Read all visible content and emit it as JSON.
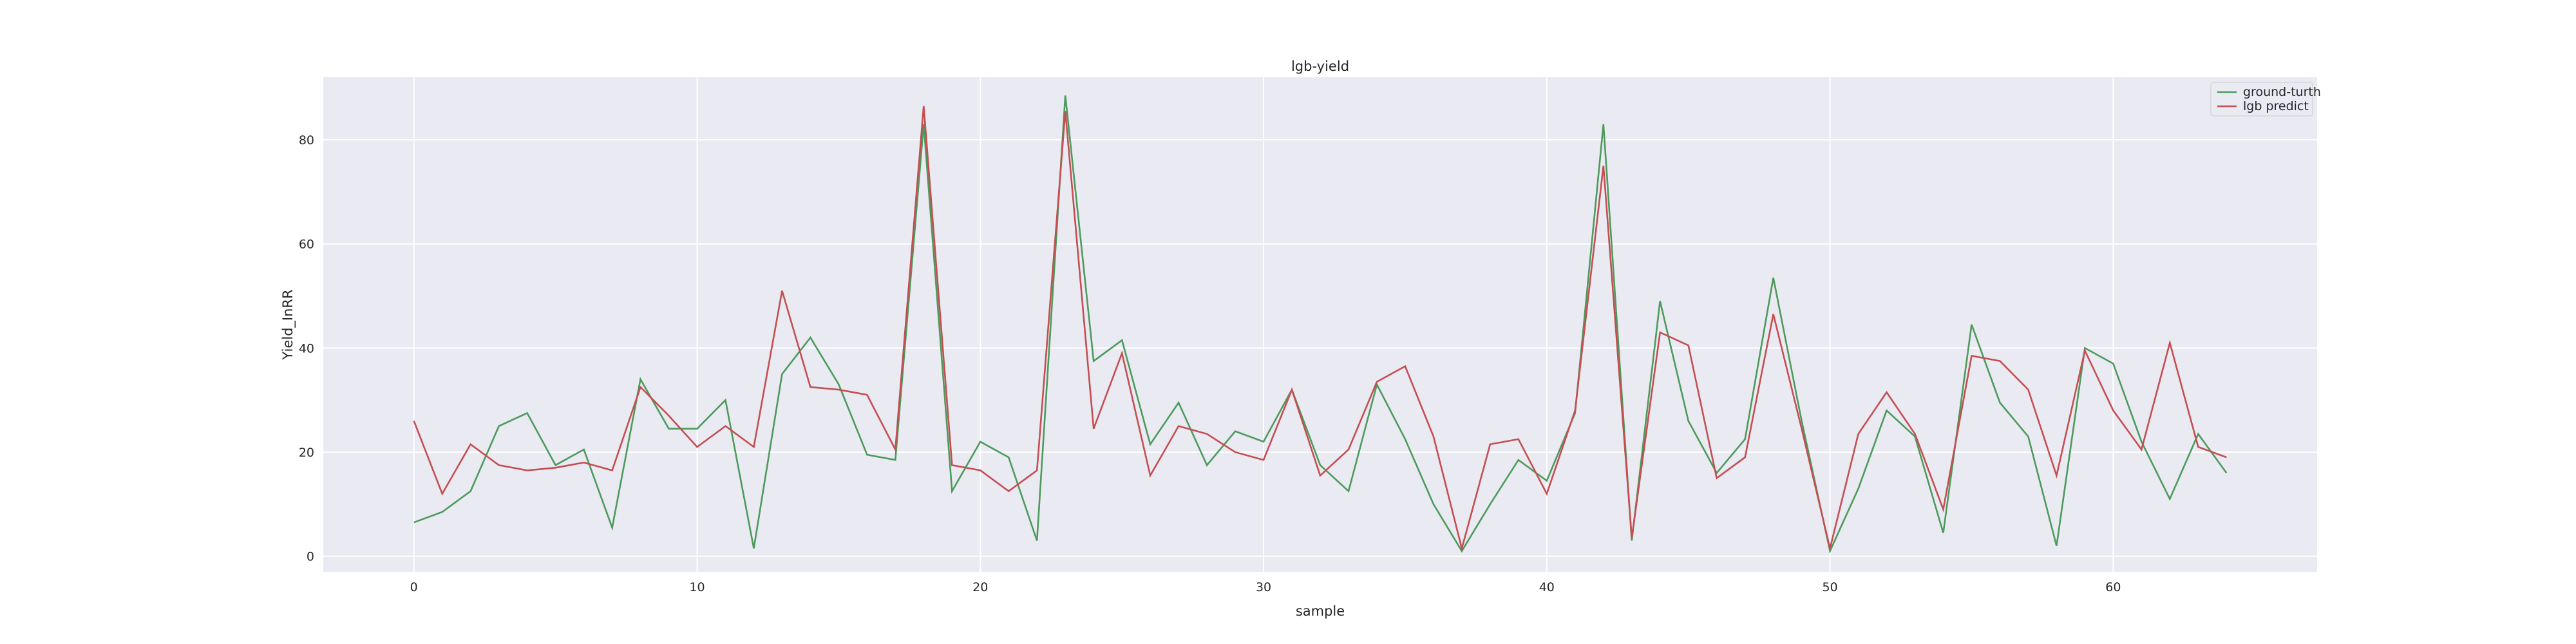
{
  "chart_data": {
    "type": "line",
    "title": "lgb-yield",
    "xlabel": "sample",
    "ylabel": "Yield_InRR",
    "xlim": [
      -3.2,
      67.2
    ],
    "ylim": [
      -3,
      92
    ],
    "xticks": [
      0,
      10,
      20,
      30,
      40,
      50,
      60
    ],
    "yticks": [
      0,
      20,
      40,
      60,
      80
    ],
    "grid": true,
    "legend_position": "top-right",
    "x": [
      0,
      1,
      2,
      3,
      4,
      5,
      6,
      7,
      8,
      9,
      10,
      11,
      12,
      13,
      14,
      15,
      16,
      17,
      18,
      19,
      20,
      21,
      22,
      23,
      24,
      25,
      26,
      27,
      28,
      29,
      30,
      31,
      32,
      33,
      34,
      35,
      36,
      37,
      38,
      39,
      40,
      41,
      42,
      43,
      44,
      45,
      46,
      47,
      48,
      49,
      50,
      51,
      52,
      53,
      54,
      55,
      56,
      57,
      58,
      59,
      60,
      61,
      62,
      63,
      64
    ],
    "series": [
      {
        "name": "ground-turth",
        "color": "#4c9a5c",
        "values": [
          6.5,
          8.5,
          12.5,
          25,
          27.5,
          17.5,
          20.5,
          5.5,
          34,
          24.5,
          24.5,
          30,
          1.5,
          35,
          42,
          33,
          19.5,
          18.5,
          83,
          12.5,
          22,
          19,
          3,
          88.5,
          37.5,
          41.5,
          21.5,
          29.5,
          17.5,
          24,
          22,
          32,
          17.5,
          12.5,
          33,
          22.5,
          10,
          1,
          10,
          18.5,
          14.5,
          27.5,
          83,
          3,
          49,
          26,
          16,
          22.5,
          53.5,
          26,
          1,
          13,
          28,
          23,
          4.5,
          44.5,
          29.5,
          23,
          2,
          40,
          37,
          22,
          11,
          23.5,
          16
        ]
      },
      {
        "name": "lgb predict",
        "color": "#c44e52",
        "values": [
          26,
          12,
          21.5,
          17.5,
          16.5,
          17,
          18,
          16.5,
          32.5,
          27,
          21,
          25,
          21,
          51,
          32.5,
          32,
          31,
          20.5,
          86.5,
          17.5,
          16.5,
          12.5,
          16.5,
          85.5,
          24.5,
          39,
          15.5,
          25,
          23.5,
          20,
          18.5,
          32,
          15.5,
          20.5,
          33.5,
          36.5,
          23,
          1.5,
          21.5,
          22.5,
          12,
          28,
          75,
          3.5,
          43,
          40.5,
          15,
          19,
          46.5,
          24.5,
          1.5,
          23.5,
          31.5,
          23.5,
          9,
          38.5,
          37.5,
          32,
          15.5,
          39.5,
          28,
          20.5,
          41,
          21,
          19
        ]
      }
    ]
  }
}
